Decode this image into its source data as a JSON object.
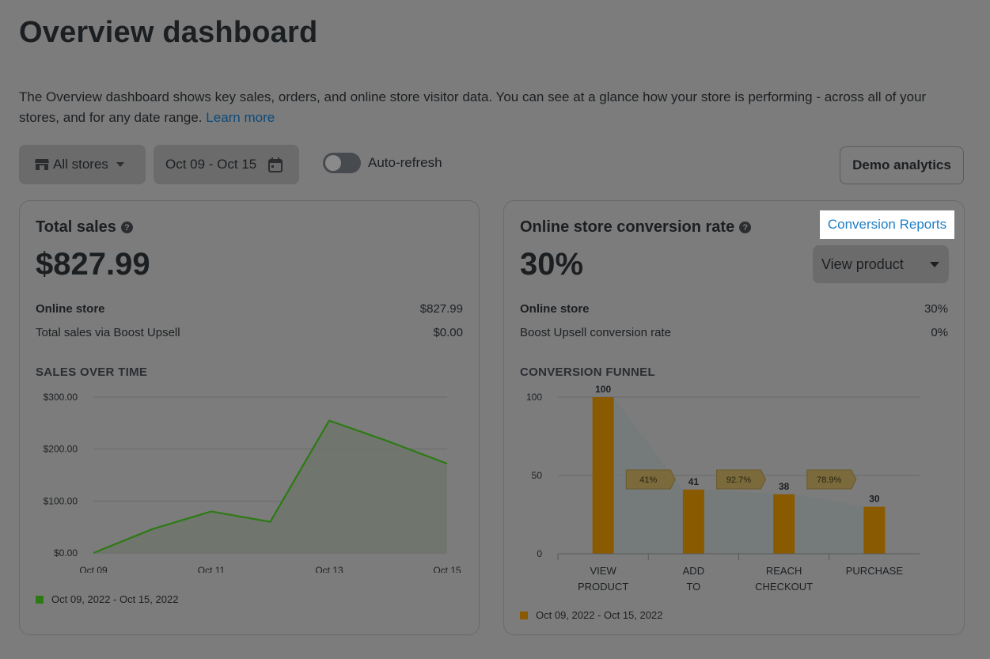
{
  "page": {
    "title": "Overview dashboard",
    "intro_text": "The Overview dashboard shows key sales, orders, and online store visitor data. You can see at a glance how your store is performing - across all of your stores, and for any date range.",
    "learn_more": "Learn more"
  },
  "toolbar": {
    "stores_label": "All stores",
    "date_range": "Oct 09 - Oct 15",
    "auto_refresh_label": "Auto-refresh",
    "auto_refresh_on": false,
    "demo_button": "Demo analytics"
  },
  "total_sales": {
    "title": "Total sales",
    "value": "$827.99",
    "rows": [
      {
        "label": "Online store",
        "value": "$827.99"
      },
      {
        "label": "Total sales via Boost Upsell",
        "value": "$0.00"
      }
    ],
    "section_label": "SALES OVER TIME",
    "legend": "Oct 09, 2022 - Oct 15, 2022"
  },
  "conversion": {
    "title": "Online store conversion rate",
    "link": "Conversion Reports",
    "value": "30%",
    "select_value": "View product",
    "rows": [
      {
        "label": "Online store",
        "value": "30%"
      },
      {
        "label": "Boost Upsell conversion rate",
        "value": "0%"
      }
    ],
    "section_label": "CONVERSION FUNNEL",
    "legend": "Oct 09, 2022 - Oct 15, 2022"
  },
  "colors": {
    "sales_line": "#2d7a14",
    "funnel_bar": "#8a5a00",
    "link": "#1f7fc4"
  },
  "chart_data": [
    {
      "type": "area",
      "x": [
        "Oct 09",
        "Oct 10",
        "Oct 11",
        "Oct 12",
        "Oct 13",
        "Oct 14",
        "Oct 15"
      ],
      "x_tick_labels": [
        "Oct 09",
        "Oct 11",
        "Oct 13",
        "Oct 15"
      ],
      "series": [
        {
          "name": "Oct 09, 2022 - Oct 15, 2022",
          "values": [
            0,
            46,
            80,
            60,
            255,
            215,
            172
          ]
        }
      ],
      "y_tick_labels": [
        "$0.00",
        "$100.00",
        "$200.00",
        "$300.00"
      ],
      "ylim": [
        0,
        300
      ],
      "grid": true,
      "legend": "bottom-left"
    },
    {
      "type": "bar",
      "categories": [
        "VIEW PRODUCT",
        "ADD TO CART",
        "REACH CHECKOUT",
        "PURCHASE"
      ],
      "series": [
        {
          "name": "Oct 09, 2022 - Oct 15, 2022",
          "values": [
            100,
            41,
            38,
            30
          ]
        }
      ],
      "data_labels": [
        "100",
        "41",
        "38",
        "30"
      ],
      "step_rates": [
        "41%",
        "92.7%",
        "78.9%"
      ],
      "y_tick_labels": [
        "0",
        "50",
        "100"
      ],
      "ylim": [
        0,
        100
      ],
      "grid": true,
      "legend": "bottom-left"
    }
  ]
}
